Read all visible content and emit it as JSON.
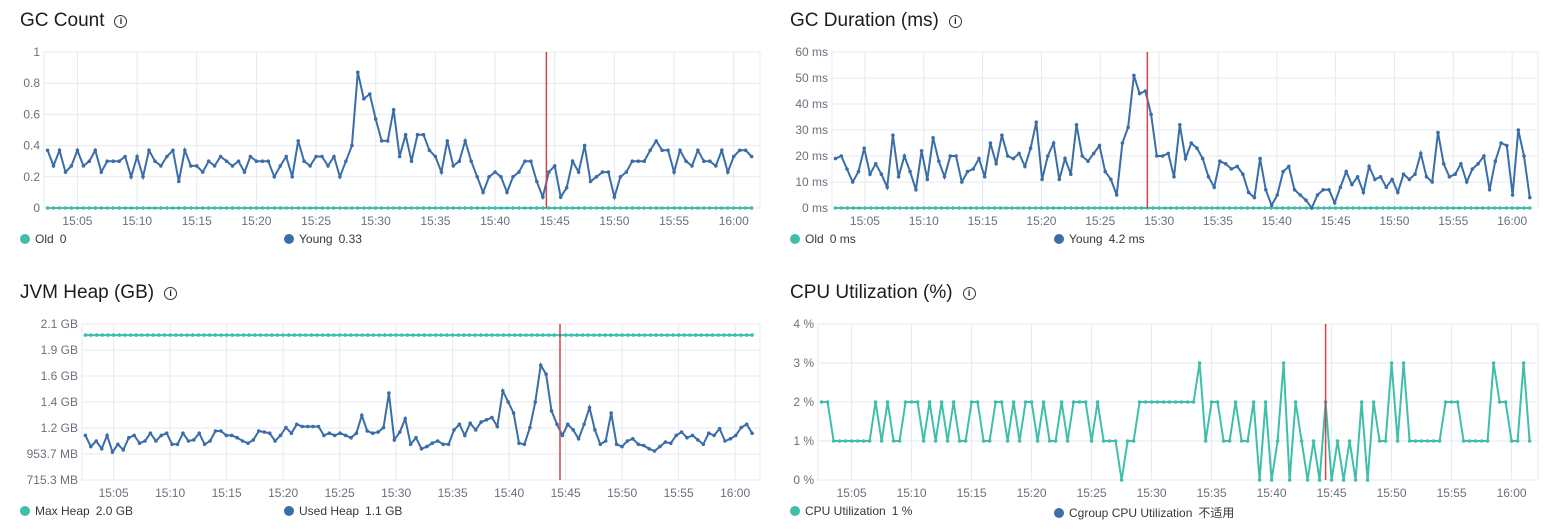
{
  "colors": {
    "teal": "#3fbfab",
    "blue": "#3b6ea8",
    "marker": "#d0454c",
    "grid": "#e6e9ef",
    "axis": "#c5c9d1"
  },
  "panels": [
    {
      "id": "gc-count",
      "title": "GC Count",
      "legend": [
        {
          "name": "Old",
          "value": "0",
          "color": "#3fbfab"
        },
        {
          "name": "Young",
          "value": "0.33",
          "color": "#3b6ea8"
        }
      ]
    },
    {
      "id": "gc-duration",
      "title": "GC Duration (ms)",
      "legend": [
        {
          "name": "Old",
          "value": "0 ms",
          "color": "#3fbfab"
        },
        {
          "name": "Young",
          "value": "4.2 ms",
          "color": "#3b6ea8"
        }
      ]
    },
    {
      "id": "jvm-heap",
      "title": "JVM Heap (GB)",
      "legend": [
        {
          "name": "Max Heap",
          "value": "2.0 GB",
          "color": "#3fbfab"
        },
        {
          "name": "Used Heap",
          "value": "1.1 GB",
          "color": "#3b6ea8"
        }
      ]
    },
    {
      "id": "cpu-util",
      "title": "CPU Utilization (%)",
      "legend": [
        {
          "name": "CPU Utilization",
          "value": "1 %",
          "color": "#3fbfab"
        },
        {
          "name": "Cgroup CPU Utilization",
          "value": "不适用",
          "color": "#3b6ea8"
        }
      ]
    }
  ],
  "chart_data": [
    {
      "type": "line",
      "title": "GC Count",
      "x_ticks": [
        "15:05",
        "15:10",
        "15:15",
        "15:20",
        "15:25",
        "15:30",
        "15:35",
        "15:40",
        "15:45",
        "15:50",
        "15:55",
        "16:00"
      ],
      "y_ticks": [
        "0",
        "0.2",
        "0.4",
        "0.6",
        "0.8",
        "1"
      ],
      "ylim": [
        0,
        1
      ],
      "marker_time": "15:44.3",
      "series": [
        {
          "name": "Old",
          "color": "#3fbfab",
          "constant": 0
        },
        {
          "name": "Young",
          "color": "#3b6ea8",
          "values": [
            0.37,
            0.27,
            0.37,
            0.23,
            0.27,
            0.37,
            0.27,
            0.3,
            0.37,
            0.23,
            0.3,
            0.3,
            0.3,
            0.33,
            0.2,
            0.33,
            0.2,
            0.37,
            0.3,
            0.27,
            0.33,
            0.37,
            0.17,
            0.37,
            0.27,
            0.27,
            0.23,
            0.3,
            0.27,
            0.33,
            0.3,
            0.27,
            0.3,
            0.23,
            0.33,
            0.3,
            0.3,
            0.3,
            0.2,
            0.27,
            0.33,
            0.2,
            0.43,
            0.3,
            0.27,
            0.33,
            0.33,
            0.27,
            0.33,
            0.2,
            0.3,
            0.4,
            0.87,
            0.7,
            0.73,
            0.57,
            0.43,
            0.43,
            0.63,
            0.33,
            0.47,
            0.3,
            0.47,
            0.47,
            0.37,
            0.33,
            0.23,
            0.43,
            0.27,
            0.3,
            0.43,
            0.3,
            0.2,
            0.1,
            0.2,
            0.23,
            0.2,
            0.1,
            0.2,
            0.23,
            0.3,
            0.3,
            0.17,
            0.07,
            0.23,
            0.27,
            0.07,
            0.13,
            0.3,
            0.23,
            0.4,
            0.17,
            0.2,
            0.23,
            0.23,
            0.07,
            0.2,
            0.23,
            0.3,
            0.3,
            0.3,
            0.37,
            0.43,
            0.37,
            0.37,
            0.23,
            0.37,
            0.3,
            0.27,
            0.37,
            0.3,
            0.3,
            0.27,
            0.37,
            0.23,
            0.33,
            0.37,
            0.37,
            0.33
          ]
        }
      ]
    },
    {
      "type": "line",
      "title": "GC Duration (ms)",
      "x_ticks": [
        "15:05",
        "15:10",
        "15:15",
        "15:20",
        "15:25",
        "15:30",
        "15:35",
        "15:40",
        "15:45",
        "15:50",
        "15:55",
        "16:00"
      ],
      "y_ticks": [
        "0 ms",
        "10 ms",
        "20 ms",
        "30 ms",
        "40 ms",
        "50 ms",
        "60 ms"
      ],
      "ylim": [
        0,
        60
      ],
      "marker_time": "15:29",
      "series": [
        {
          "name": "Old",
          "color": "#3fbfab",
          "constant": 0
        },
        {
          "name": "Young",
          "color": "#3b6ea8",
          "values": [
            19,
            20,
            15,
            10,
            14,
            23,
            13,
            17,
            13,
            8,
            28,
            12,
            20,
            14,
            7,
            22,
            11,
            27,
            18,
            12,
            20,
            20,
            10,
            14,
            15,
            19,
            12,
            25,
            17,
            28,
            20,
            19,
            21,
            16,
            23,
            33,
            11,
            20,
            25,
            11,
            19,
            13,
            32,
            20,
            18,
            21,
            24,
            14,
            11,
            5,
            25,
            31,
            51,
            44,
            45,
            36,
            20,
            20,
            21,
            12,
            32,
            19,
            25,
            23,
            19,
            12,
            8,
            18,
            17,
            15,
            16,
            13,
            6,
            4,
            19,
            7,
            1,
            5,
            14,
            16,
            7,
            5,
            3,
            0,
            5,
            7,
            7,
            2,
            8,
            14,
            9,
            12,
            6,
            16,
            11,
            12,
            8,
            11,
            6,
            13,
            11,
            13,
            21,
            12,
            10,
            29,
            17,
            12,
            13,
            17,
            10,
            15,
            17,
            20,
            7,
            18,
            25,
            24,
            5,
            30,
            20,
            4
          ]
        }
      ]
    },
    {
      "type": "line",
      "title": "JVM Heap (GB)",
      "x_ticks": [
        "15:05",
        "15:10",
        "15:15",
        "15:20",
        "15:25",
        "15:30",
        "15:35",
        "15:40",
        "15:45",
        "15:50",
        "15:55",
        "16:00"
      ],
      "y_ticks": [
        "715.3 MB",
        "953.7 MB",
        "1.2 GB",
        "1.4 GB",
        "1.6 GB",
        "1.9 GB",
        "2.1 GB"
      ],
      "ylim": [
        0.7,
        2.1
      ],
      "marker_time": "15:44.5",
      "series": [
        {
          "name": "Max Heap",
          "color": "#3fbfab",
          "constant": 2.0
        },
        {
          "name": "Used Heap",
          "color": "#3b6ea8",
          "values": [
            1.1,
            1.0,
            1.05,
            0.98,
            1.1,
            0.95,
            1.02,
            0.97,
            1.08,
            1.1,
            1.03,
            1.05,
            1.12,
            1.05,
            1.1,
            1.12,
            1.02,
            1.02,
            1.12,
            1.05,
            1.06,
            1.12,
            1.02,
            1.05,
            1.14,
            1.14,
            1.1,
            1.1,
            1.08,
            1.05,
            1.03,
            1.06,
            1.14,
            1.13,
            1.12,
            1.05,
            1.1,
            1.17,
            1.12,
            1.2,
            1.18,
            1.18,
            1.18,
            1.18,
            1.1,
            1.12,
            1.1,
            1.12,
            1.1,
            1.08,
            1.12,
            1.28,
            1.14,
            1.12,
            1.13,
            1.17,
            1.48,
            1.06,
            1.13,
            1.25,
            1.02,
            1.08,
            0.98,
            1.0,
            1.03,
            1.05,
            1.02,
            1.02,
            1.15,
            1.2,
            1.1,
            1.21,
            1.15,
            1.22,
            1.24,
            1.26,
            1.18,
            1.5,
            1.4,
            1.3,
            1.03,
            1.02,
            1.17,
            1.4,
            1.73,
            1.65,
            1.32,
            1.2,
            1.1,
            1.2,
            1.15,
            1.07,
            1.2,
            1.35,
            1.15,
            1.02,
            1.05,
            1.3,
            1.02,
            1.0,
            1.05,
            1.07,
            1.02,
            1.01,
            0.98,
            0.96,
            1.0,
            1.04,
            1.03,
            1.1,
            1.13,
            1.08,
            1.1,
            1.06,
            1.02,
            1.12,
            1.1,
            1.16,
            1.05,
            1.07,
            1.1,
            1.17,
            1.2,
            1.12
          ]
        }
      ]
    },
    {
      "type": "line",
      "title": "CPU Utilization (%)",
      "x_ticks": [
        "15:05",
        "15:10",
        "15:15",
        "15:20",
        "15:25",
        "15:30",
        "15:35",
        "15:40",
        "15:45",
        "15:50",
        "15:55",
        "16:00"
      ],
      "y_ticks": [
        "0 %",
        "1 %",
        "2 %",
        "3 %",
        "4 %"
      ],
      "ylim": [
        0,
        4
      ],
      "marker_time": "15:44.5",
      "series": [
        {
          "name": "CPU Utilization",
          "color": "#3fbfab",
          "values": [
            2,
            2,
            1,
            1,
            1,
            1,
            1,
            1,
            1,
            2,
            1,
            2,
            1,
            1,
            2,
            2,
            2,
            1,
            2,
            1,
            2,
            1,
            2,
            1,
            1,
            2,
            2,
            1,
            1,
            2,
            2,
            1,
            2,
            1,
            2,
            2,
            1,
            2,
            1,
            1,
            2,
            1,
            2,
            2,
            2,
            1,
            2,
            1,
            1,
            1,
            0,
            1,
            1,
            2,
            2,
            2,
            2,
            2,
            2,
            2,
            2,
            2,
            2,
            3,
            1,
            2,
            2,
            1,
            1,
            2,
            1,
            1,
            2,
            0,
            2,
            0,
            1,
            3,
            0,
            2,
            1,
            0,
            1,
            0,
            2,
            0,
            1,
            0,
            1,
            0,
            2,
            0,
            2,
            1,
            1,
            3,
            1,
            3,
            1,
            1,
            1,
            1,
            1,
            1,
            2,
            2,
            2,
            1,
            1,
            1,
            1,
            1,
            3,
            2,
            2,
            1,
            1,
            3,
            1
          ]
        },
        {
          "name": "Cgroup CPU Utilization",
          "color": "#3b6ea8",
          "values": []
        }
      ]
    }
  ]
}
